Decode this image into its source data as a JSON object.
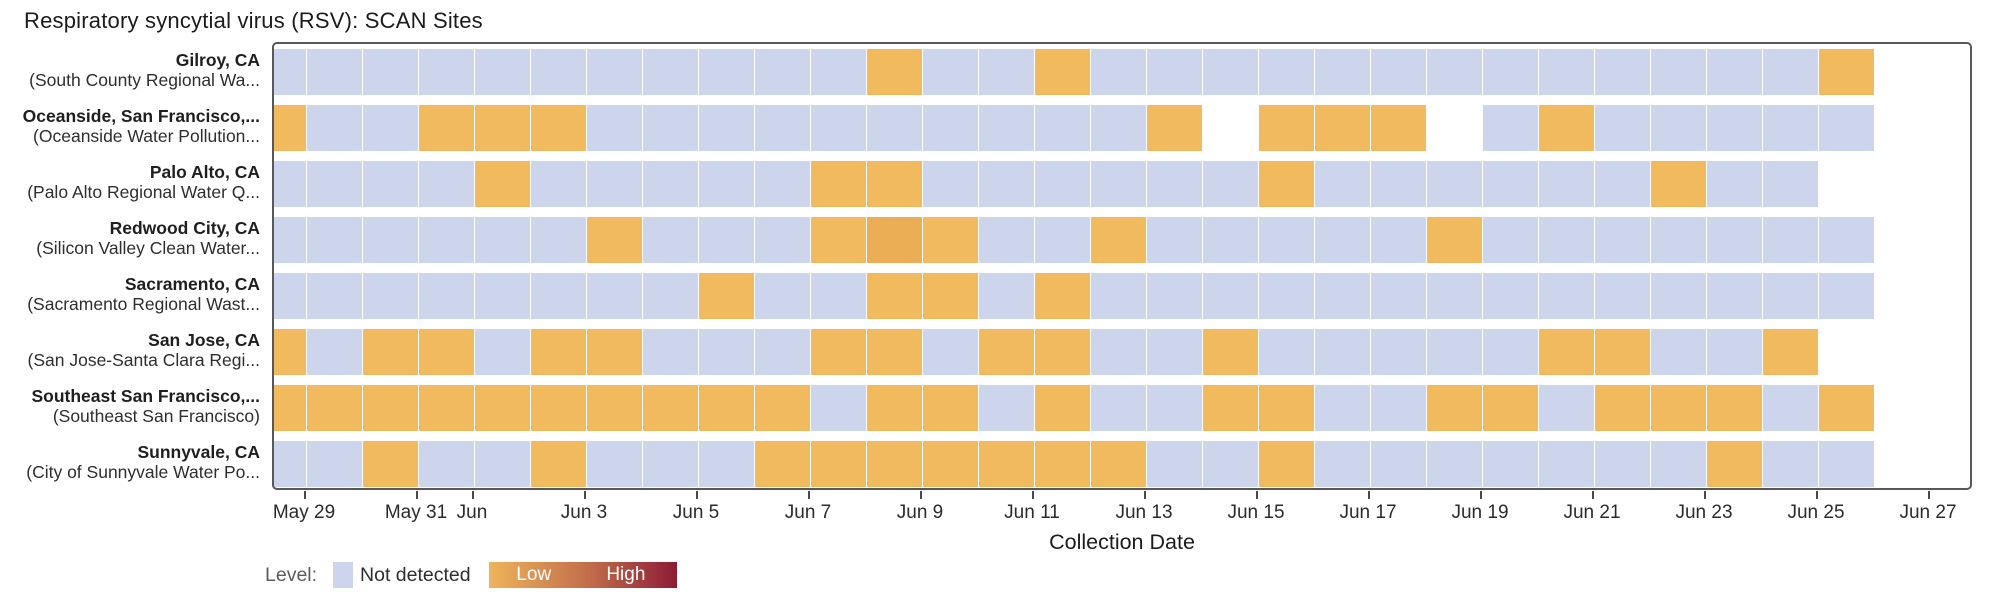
{
  "title": "Respiratory syncytial virus (RSV): SCAN Sites",
  "xlabel": "Collection Date",
  "legend": {
    "label": "Level:",
    "not_detected": "Not detected",
    "low": "Low",
    "high": "High"
  },
  "colors": {
    "not_detected": "#ccd5eb",
    "low": "#f2ba5e",
    "low_darker": "#ebae55",
    "gradient_start": "#eeb45a",
    "gradient_mid": "#c06a4b",
    "gradient_end": "#8c1c35",
    "frame_border": "#58585a",
    "tick": "#4a4a4a"
  },
  "chart_data": {
    "type": "heatmap",
    "title": "Respiratory syncytial virus (RSV): SCAN Sites",
    "xlabel": "Collection Date",
    "ylabel": "",
    "x_dates": [
      "May 28",
      "May 29",
      "May 30",
      "May 31",
      "Jun 1",
      "Jun 2",
      "Jun 3",
      "Jun 4",
      "Jun 5",
      "Jun 6",
      "Jun 7",
      "Jun 8",
      "Jun 9",
      "Jun 10",
      "Jun 11",
      "Jun 12",
      "Jun 13",
      "Jun 14",
      "Jun 15",
      "Jun 16",
      "Jun 17",
      "Jun 18",
      "Jun 19",
      "Jun 20",
      "Jun 21",
      "Jun 22",
      "Jun 23",
      "Jun 24",
      "Jun 25"
    ],
    "cell_codes": {
      "N": "not detected",
      "L": "low",
      "D": "low (slightly higher)",
      ".": "no sample"
    },
    "rows": [
      {
        "site": "Gilroy, CA",
        "facility": "(South County Regional Wa...",
        "cells": "NNNNNNNNNNNLNNLNNNNNNNNNNNNNL"
      },
      {
        "site": "Oceanside, San Francisco,...",
        "facility": "(Oceanside Water Pollution...",
        "cells": "LNNLLLNNNNNNNNNNL.LLL.NLNNNNN"
      },
      {
        "site": "Palo Alto, CA",
        "facility": "(Palo Alto Regional Water Q...",
        "cells": "NNNNLNNNNNLLNNNNNNLNNNNNNLNN."
      },
      {
        "site": "Redwood City, CA",
        "facility": "(Silicon Valley Clean Water...",
        "cells": "NNNNNNLNNNLDLNNLNNNNNLNNNNNNN"
      },
      {
        "site": "Sacramento, CA",
        "facility": "(Sacramento Regional Wast...",
        "cells": "NNNNNNNNLNNLLNLNNNNNNNNNNNNNN"
      },
      {
        "site": "San Jose, CA",
        "facility": "(San Jose-Santa Clara Regi...",
        "cells": "LNLLNLLNNNLLNLLNNLNNNNNLLNNL."
      },
      {
        "site": "Southeast San Francisco,...",
        "facility": "(Southeast San Francisco)",
        "cells": "LLLLLLLLLLNLLNLNNLLNNLLNLLLNL"
      },
      {
        "site": "Sunnyvale, CA",
        "facility": "(City of Sunnyvale Water Po...",
        "cells": "NNLNNLNNNLLLLLLLNNLNNNNNNNLNN"
      }
    ],
    "x_ticks": [
      {
        "label": "May 29",
        "day": 1
      },
      {
        "label": "May 31",
        "day": 3
      },
      {
        "label": "Jun",
        "day": 4
      },
      {
        "label": "Jun 3",
        "day": 6
      },
      {
        "label": "Jun 5",
        "day": 8
      },
      {
        "label": "Jun 7",
        "day": 10
      },
      {
        "label": "Jun 9",
        "day": 12
      },
      {
        "label": "Jun 11",
        "day": 14
      },
      {
        "label": "Jun 13",
        "day": 16
      },
      {
        "label": "Jun 15",
        "day": 18
      },
      {
        "label": "Jun 17",
        "day": 20
      },
      {
        "label": "Jun 19",
        "day": 22
      },
      {
        "label": "Jun 21",
        "day": 24
      },
      {
        "label": "Jun 23",
        "day": 26
      },
      {
        "label": "Jun 25",
        "day": 28
      },
      {
        "label": "Jun 27",
        "day": 30
      }
    ],
    "legend": {
      "not_detected": "Not detected",
      "scale_low": "Low",
      "scale_high": "High"
    }
  }
}
